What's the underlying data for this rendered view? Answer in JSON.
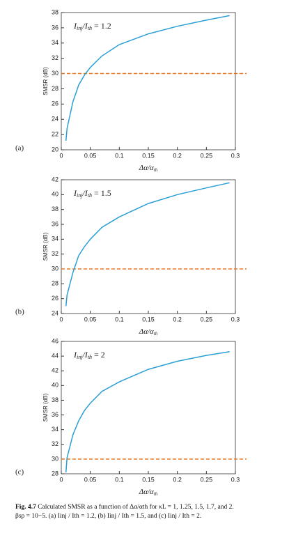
{
  "chart_data": [
    {
      "type": "line",
      "panel": "(a)",
      "ylabel": "SMSR (dB)",
      "xlabel": [
        "Δα/α",
        "th"
      ],
      "annotation": [
        "I",
        "inj",
        "/I",
        "th",
        " = 1.2"
      ],
      "x": [
        0.008,
        0.01,
        0.02,
        0.03,
        0.04,
        0.05,
        0.07,
        0.1,
        0.15,
        0.2,
        0.25,
        0.29
      ],
      "series": [
        {
          "color": "#2a9fd6",
          "values": [
            21.2,
            22.8,
            26.3,
            28.5,
            29.8,
            30.8,
            32.3,
            33.8,
            35.2,
            36.2,
            37.0,
            37.6
          ]
        }
      ],
      "reference_line": 30,
      "reference_color": "#e87722",
      "xlim": [
        0,
        0.3
      ],
      "xticks": [
        0,
        0.05,
        0.1,
        0.15,
        0.2,
        0.25,
        0.3
      ],
      "ylim": [
        20,
        38
      ],
      "yticks": [
        20,
        22,
        24,
        26,
        28,
        30,
        32,
        34,
        36,
        38
      ]
    },
    {
      "type": "line",
      "panel": "(b)",
      "ylabel": "SMSR (dB)",
      "xlabel": [
        "Δα/α",
        "th"
      ],
      "annotation": [
        "I",
        "inj",
        "/I",
        "th",
        " = 1.5"
      ],
      "x": [
        0.008,
        0.01,
        0.02,
        0.03,
        0.04,
        0.05,
        0.07,
        0.1,
        0.15,
        0.2,
        0.25,
        0.29
      ],
      "series": [
        {
          "color": "#2a9fd6",
          "values": [
            25.0,
            26.5,
            29.5,
            31.8,
            33.0,
            34.0,
            35.6,
            37.0,
            38.8,
            40.0,
            40.9,
            41.6
          ]
        }
      ],
      "reference_line": 30,
      "reference_color": "#e87722",
      "xlim": [
        0,
        0.3
      ],
      "xticks": [
        0,
        0.05,
        0.1,
        0.15,
        0.2,
        0.25,
        0.3
      ],
      "ylim": [
        24,
        42
      ],
      "yticks": [
        24,
        26,
        28,
        30,
        32,
        34,
        36,
        38,
        40,
        42
      ]
    },
    {
      "type": "line",
      "panel": "(c)",
      "ylabel": "SMSR (dB)",
      "xlabel": [
        "Δα/α",
        "th"
      ],
      "annotation": [
        "I",
        "inj",
        "/I",
        "th",
        " = 2"
      ],
      "x": [
        0.008,
        0.01,
        0.02,
        0.03,
        0.04,
        0.05,
        0.07,
        0.1,
        0.15,
        0.2,
        0.25,
        0.29
      ],
      "series": [
        {
          "color": "#2a9fd6",
          "values": [
            28.2,
            30.2,
            33.3,
            35.2,
            36.6,
            37.6,
            39.2,
            40.5,
            42.2,
            43.3,
            44.1,
            44.6
          ]
        }
      ],
      "reference_line": 30,
      "reference_color": "#e87722",
      "xlim": [
        0,
        0.3
      ],
      "xticks": [
        0,
        0.05,
        0.1,
        0.15,
        0.2,
        0.25,
        0.3
      ],
      "ylim": [
        28,
        46
      ],
      "yticks": [
        28,
        30,
        32,
        34,
        36,
        38,
        40,
        42,
        44,
        46
      ]
    }
  ],
  "caption": {
    "label": "Fig. 4.7",
    "line1": "Calculated SMSR as a function of Δα/αth for κL = 1, 1.25, 1.5, 1.7, and 2.",
    "line2": "βsp = 10−5. (a) Iinj / Ith = 1.2, (b) Iinj / Ith = 1.5, and (c) Iinj / Ith = 2."
  }
}
